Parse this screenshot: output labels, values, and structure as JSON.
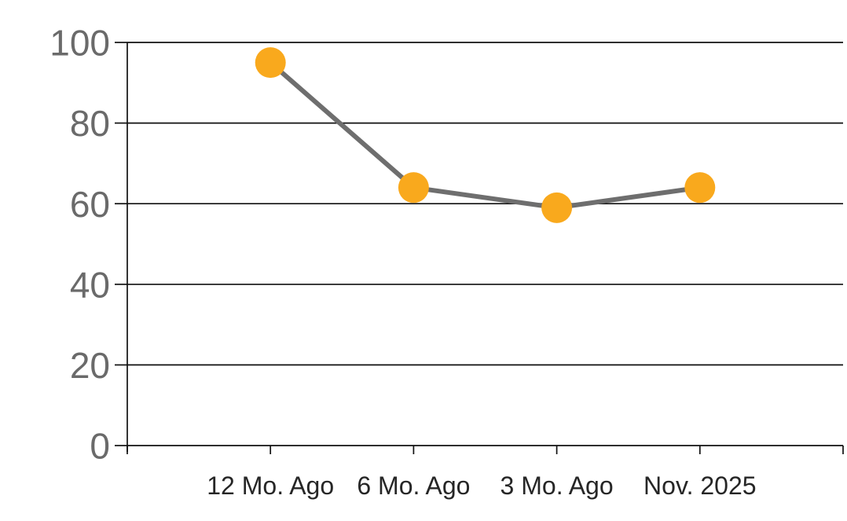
{
  "chart_data": {
    "type": "line",
    "categories": [
      "12 Mo. Ago",
      "6 Mo. Ago",
      "3 Mo. Ago",
      "Nov. 2025"
    ],
    "values": [
      95,
      64,
      59,
      64
    ],
    "title": "",
    "xlabel": "",
    "ylabel": "",
    "ylim": [
      0,
      100
    ],
    "yticks": [
      0,
      20,
      40,
      60,
      80,
      100
    ],
    "grid": true,
    "legend": false,
    "legend_position": "none",
    "marker_color": "#F9A91D",
    "line_color": "#6E6E6E",
    "grid_color": "#111111",
    "axis_color": "#111111",
    "ytick_label_color": "#6A6A6A",
    "xtick_label_color": "#262626",
    "background_color": "#FFFFFF"
  }
}
